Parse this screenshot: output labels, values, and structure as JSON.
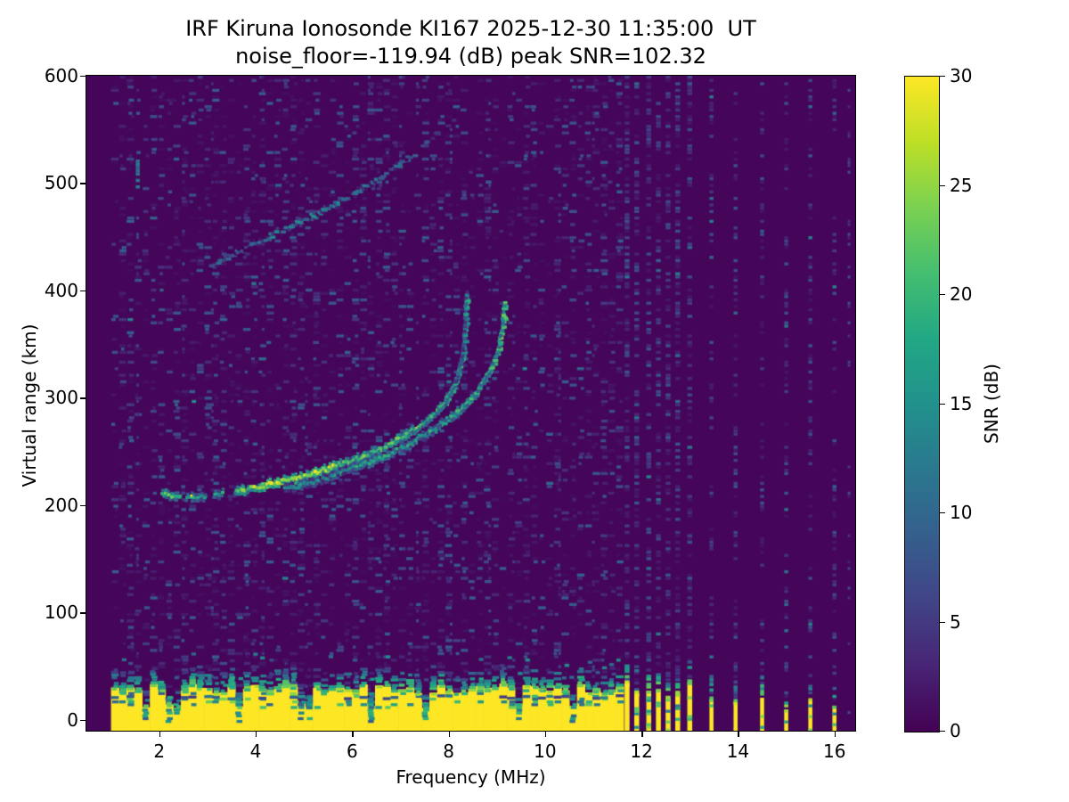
{
  "chart_data": {
    "type": "heatmap",
    "title_line1": "IRF Kiruna Ionosonde KI167 2025-12-30 11:35:00  UT",
    "title_line2": "noise_floor=-119.94 (dB) peak SNR=102.32",
    "station": "IRF Kiruna Ionosonde KI167",
    "timestamp_ut": "2025-12-30 11:35:00",
    "noise_floor_db": -119.94,
    "peak_snr_db": 102.32,
    "xlabel": "Frequency (MHz)",
    "ylabel": "Virtual range (km)",
    "xlim": [
      0.49,
      16.43
    ],
    "ylim": [
      -10,
      600
    ],
    "x_ticks": {
      "values": [
        2,
        4,
        6,
        8,
        10,
        12,
        14,
        16
      ],
      "labels": [
        "2",
        "4",
        "6",
        "8",
        "10",
        "12",
        "14",
        "16"
      ]
    },
    "y_ticks": {
      "values": [
        0,
        100,
        200,
        300,
        400,
        500,
        600
      ],
      "labels": [
        "0",
        "100",
        "200",
        "300",
        "400",
        "500",
        "600"
      ]
    },
    "colorbar": {
      "label": "SNR (dB)",
      "min": 0,
      "max": 30,
      "ticks": {
        "values": [
          0,
          5,
          10,
          15,
          20,
          25,
          30
        ],
        "labels": [
          "0",
          "5",
          "10",
          "15",
          "20",
          "25",
          "30"
        ]
      },
      "colormap": "viridis"
    },
    "viridis_stops": [
      [
        0.0,
        68,
        1,
        84
      ],
      [
        0.1,
        72,
        36,
        117
      ],
      [
        0.2,
        65,
        68,
        135
      ],
      [
        0.3,
        53,
        95,
        141
      ],
      [
        0.4,
        42,
        120,
        142
      ],
      [
        0.5,
        33,
        145,
        140
      ],
      [
        0.6,
        34,
        168,
        132
      ],
      [
        0.7,
        68,
        190,
        112
      ],
      [
        0.8,
        122,
        209,
        81
      ],
      [
        0.9,
        189,
        223,
        38
      ],
      [
        1.0,
        253,
        231,
        37
      ]
    ],
    "sweep": {
      "start_mhz": 1.0,
      "continuous_end_mhz": 11.6,
      "spot_frequencies_mhz": [
        11.7,
        11.9,
        12.15,
        12.35,
        12.55,
        12.75,
        13.0,
        13.45,
        13.95,
        14.5,
        15.0,
        15.5,
        16.0
      ],
      "faint_noise_columns_mhz": [
        1.55,
        2.5,
        3.1,
        4.15,
        5.05,
        6.35,
        7.0,
        7.35,
        8.05,
        8.85,
        9.35,
        10.3,
        11.0,
        16.3
      ],
      "quiet_column_mhz": [
        9.02,
        9.2
      ]
    },
    "ground_clutter": {
      "solid_top_km": 29,
      "speckle_top_km": 52,
      "dark_row_km": 21,
      "notch_freqs_mhz": [
        1.7,
        2.2,
        3.62,
        4.95,
        6.28,
        7.42,
        9.38,
        10.55
      ]
    },
    "traces": {
      "o_mode": {
        "critical_frequency_mhz": 8.36,
        "max_virtual_range_km": 397,
        "points": [
          [
            2.05,
            212
          ],
          [
            2.35,
            210
          ],
          [
            2.7,
            209
          ],
          [
            3.0,
            210
          ],
          [
            3.3,
            212
          ],
          [
            3.6,
            214
          ],
          [
            4.0,
            218
          ],
          [
            4.4,
            222
          ],
          [
            4.8,
            226
          ],
          [
            5.2,
            231
          ],
          [
            5.6,
            237
          ],
          [
            6.0,
            243
          ],
          [
            6.4,
            250
          ],
          [
            6.8,
            258
          ],
          [
            7.1,
            266
          ],
          [
            7.4,
            275
          ],
          [
            7.7,
            286
          ],
          [
            7.9,
            296
          ],
          [
            8.05,
            307
          ],
          [
            8.17,
            319
          ],
          [
            8.25,
            332
          ],
          [
            8.31,
            348
          ],
          [
            8.34,
            363
          ],
          [
            8.36,
            397
          ]
        ],
        "gaps_mhz": [
          [
            2.42,
            2.58
          ],
          [
            2.95,
            3.12
          ],
          [
            3.32,
            3.56
          ]
        ]
      },
      "x_mode": {
        "critical_frequency_mhz": 9.16,
        "max_virtual_range_km": 392,
        "points": [
          [
            4.6,
            216
          ],
          [
            5.0,
            221
          ],
          [
            5.4,
            226
          ],
          [
            5.8,
            232
          ],
          [
            6.2,
            239
          ],
          [
            6.6,
            246
          ],
          [
            7.0,
            254
          ],
          [
            7.4,
            264
          ],
          [
            7.7,
            272
          ],
          [
            8.0,
            282
          ],
          [
            8.3,
            293
          ],
          [
            8.55,
            305
          ],
          [
            8.75,
            318
          ],
          [
            8.9,
            331
          ],
          [
            9.0,
            344
          ],
          [
            9.08,
            358
          ],
          [
            9.13,
            372
          ],
          [
            9.16,
            392
          ]
        ]
      },
      "second_hop": {
        "points": [
          [
            3.05,
            424
          ],
          [
            3.6,
            437
          ],
          [
            4.2,
            450
          ],
          [
            4.8,
            463
          ],
          [
            5.4,
            476
          ],
          [
            6.0,
            491
          ],
          [
            6.5,
            504
          ],
          [
            7.0,
            519
          ],
          [
            7.3,
            530
          ]
        ],
        "faint_extension": [
          [
            7.45,
            537
          ],
          [
            7.7,
            546
          ],
          [
            8.0,
            556
          ],
          [
            8.2,
            562
          ]
        ]
      },
      "smudge": {
        "freq_mhz": 1.55,
        "km_range": [
          498,
          524
        ],
        "snr": 11
      }
    }
  }
}
